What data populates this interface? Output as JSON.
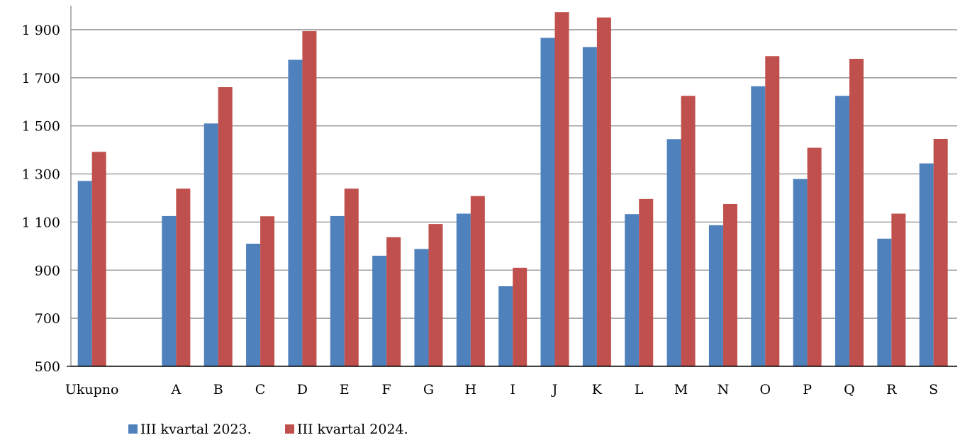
{
  "chart_data": {
    "type": "bar",
    "title": "",
    "xlabel": "",
    "ylabel": "",
    "categories": [
      "Ukupno",
      "",
      "A",
      "B",
      "C",
      "D",
      "E",
      "F",
      "G",
      "H",
      "I",
      "J",
      "K",
      "L",
      "M",
      "N",
      "O",
      "P",
      "Q",
      "R",
      "S"
    ],
    "series": [
      {
        "name": "III kvartal 2023.",
        "color": "#4F81BD",
        "values": [
          1271,
          null,
          1125,
          1510,
          1010,
          1775,
          1125,
          960,
          988,
          1135,
          833,
          1866,
          1828,
          1133,
          1445,
          1087,
          1665,
          1279,
          1625,
          1031,
          1344
        ]
      },
      {
        "name": "III kvartal 2024.",
        "color": "#C0504D",
        "values": [
          1392,
          null,
          1239,
          1661,
          1124,
          1894,
          1239,
          1037,
          1092,
          1208,
          910,
          1973,
          1951,
          1196,
          1625,
          1175,
          1790,
          1409,
          1779,
          1135,
          1446
        ]
      }
    ],
    "ylim": [
      500,
      2000
    ],
    "yticks": [
      500,
      700,
      900,
      1100,
      1300,
      1500,
      1700,
      1900
    ],
    "ytick_labels": [
      "500",
      "700",
      "900",
      "1 100",
      "1 300",
      "1 500",
      "1 700",
      "1 900"
    ],
    "grid": true,
    "legend_position": "bottom"
  }
}
